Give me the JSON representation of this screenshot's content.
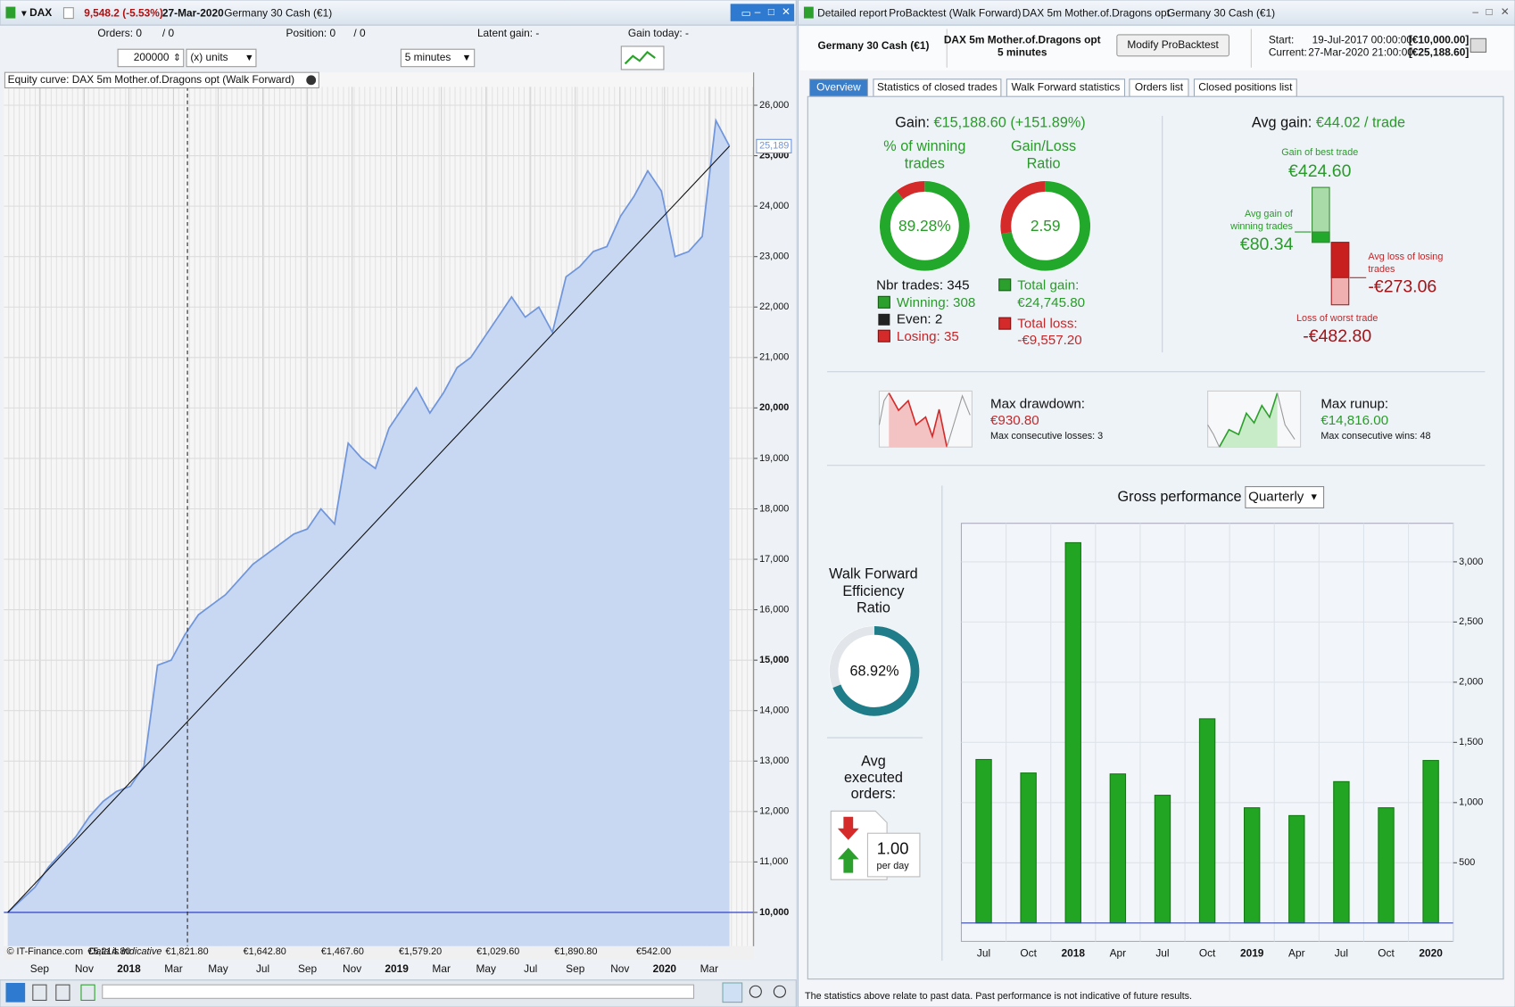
{
  "left_window": {
    "title": {
      "symbol": "DAX",
      "quote": "9,548.2 (-5.53%)",
      "date": "27-Mar-2020",
      "instrument": "Germany 30 Cash (€1)"
    },
    "toolbar": {
      "orders": "Orders: 0",
      "orders_total": "/ 0",
      "position": "Position: 0",
      "position_total": "/ 0",
      "latent_gain": "Latent gain: -",
      "gain_today": "Gain today: -",
      "quantity": "200000",
      "units": "(x) units",
      "timeframe": "5 minutes"
    },
    "chart_footer": {
      "copyright": "© IT-Finance.com",
      "disclaimer": "Data is indicative",
      "period_gains": [
        "€5,214.80",
        "€1,821.80",
        "€1,642.80",
        "€1,467.60",
        "€1,579.20",
        "€1,029.60",
        "€1,890.80",
        "€542.00"
      ]
    }
  },
  "chart_data": [
    {
      "type": "area",
      "title": "Equity curve: DAX 5m Mother.of.Dragons opt (Walk Forward)",
      "x_labels": [
        "Sep",
        "Nov",
        "2018",
        "Mar",
        "May",
        "Jul",
        "Sep",
        "Nov",
        "2019",
        "Mar",
        "May",
        "Jul",
        "Sep",
        "Nov",
        "2020",
        "Mar"
      ],
      "values": [
        10000,
        10250,
        10500,
        10900,
        11200,
        11500,
        11900,
        12200,
        12400,
        12500,
        12900,
        14900,
        15000,
        15500,
        15900,
        16100,
        16300,
        16600,
        16900,
        17100,
        17300,
        17500,
        17600,
        18000,
        17700,
        19300,
        19000,
        18800,
        19600,
        20000,
        20400,
        19900,
        20300,
        20800,
        21000,
        21400,
        21800,
        22200,
        21800,
        22000,
        21500,
        22600,
        22800,
        23100,
        23200,
        23800,
        24200,
        24700,
        24300,
        23000,
        23100,
        23400,
        25700,
        25189
      ],
      "ylim": [
        9330,
        26364
      ],
      "yticks": [
        {
          "value": 10000,
          "label": "10,000"
        },
        {
          "value": 11000,
          "label": "11,000"
        },
        {
          "value": 12000,
          "label": "12,000"
        },
        {
          "value": 13000,
          "label": "13,000"
        },
        {
          "value": 14000,
          "label": "14,000"
        },
        {
          "value": 15000,
          "label": "15,000"
        },
        {
          "value": 16000,
          "label": "16,000"
        },
        {
          "value": 17000,
          "label": "17,000"
        },
        {
          "value": 18000,
          "label": "18,000"
        },
        {
          "value": 19000,
          "label": "19,000"
        },
        {
          "value": 20000,
          "label": "20,000"
        },
        {
          "value": 21000,
          "label": "21,000"
        },
        {
          "value": 22000,
          "label": "22,000"
        },
        {
          "value": 23000,
          "label": "23,000"
        },
        {
          "value": 24000,
          "label": "24,000"
        },
        {
          "value": 25000,
          "label": "25,000"
        },
        {
          "value": 26000,
          "label": "26,000"
        }
      ],
      "current_label": "25,189",
      "color": "#6f95dc",
      "fill_color": "#c8d8f3",
      "trendline": true,
      "grid": true
    },
    {
      "type": "bar",
      "title": "Gross performance",
      "period": "Quarterly",
      "categories": [
        "Jul",
        "Oct",
        "2018",
        "Apr",
        "Jul",
        "Oct",
        "2019",
        "Apr",
        "Jul",
        "Oct",
        "2020"
      ],
      "values": [
        1358,
        1246,
        3159,
        1238,
        1061,
        1696,
        957,
        892,
        1174,
        957,
        1350
      ],
      "ylim": [
        -153,
        3320
      ],
      "yticks": [
        500,
        {
          "value": 1000,
          "label": "1,000"
        },
        {
          "value": 1500,
          "label": "1,500"
        },
        {
          "value": 2000,
          "label": "2,000"
        },
        {
          "value": 2500,
          "label": "2,500"
        },
        {
          "value": 3000,
          "label": "3,000"
        }
      ],
      "color": "#22a522",
      "grid": true
    }
  ],
  "report": {
    "title_bar": {
      "title": "Detailed report",
      "mode": "ProBacktest (Walk Forward)",
      "system": "DAX 5m Mother.of.Dragons opt",
      "instrument": "Germany 30 Cash (€1)"
    },
    "header": {
      "instrument": "Germany 30 Cash (€1)",
      "system": "DAX 5m Mother.of.Dragons opt",
      "timeframe": "5 minutes",
      "button": "Modify ProBacktest",
      "start_label": "Start:",
      "start_date": "19-Jul-2017 00:00:00",
      "start_capital": "[€10,000.00]",
      "current_label": "Current:",
      "current_date": "27-Mar-2020 21:00:00",
      "current_capital": "[€25,188.60]"
    },
    "tabs": [
      "Overview",
      "Statistics of closed trades",
      "Walk Forward statistics",
      "Orders list",
      "Closed positions list"
    ],
    "gain": {
      "label": "Gain:",
      "value": "€15,188.60 (+151.89%)"
    },
    "win_rate": {
      "title": [
        "% of winning",
        "trades"
      ],
      "value": 89.28,
      "label": "89.28%"
    },
    "gain_loss_ratio": {
      "title": [
        "Gain/Loss",
        "Ratio"
      ],
      "value": 2.59
    },
    "trades": {
      "total": "Nbr trades: 345",
      "winning": "Winning: 308",
      "even": "Even: 2",
      "losing": "Losing: 35"
    },
    "totals": {
      "gain_label": "Total gain:",
      "gain": "€24,745.80",
      "loss_label": "Total loss:",
      "loss": "-€9,557.20"
    },
    "avg_gain": {
      "label": "Avg gain:",
      "value": "€44.02 / trade"
    },
    "trade_range": {
      "best": {
        "title": "Gain of best trade",
        "value": 424.6,
        "label": "€424.60"
      },
      "avg_win": {
        "title": [
          "Avg gain of",
          "winning trades"
        ],
        "value": 80.34,
        "label": "€80.34"
      },
      "avg_loss": {
        "title": [
          "Avg loss of losing",
          "trades"
        ],
        "value": -273.06,
        "label": "-€273.06"
      },
      "worst": {
        "title": "Loss of worst trade",
        "value": -482.8,
        "label": "-€482.80"
      }
    },
    "drawdown": {
      "label": "Max drawdown:",
      "value": "€930.80",
      "consecutive": "Max consecutive losses: 3"
    },
    "runup": {
      "label": "Max runup:",
      "value": "€14,816.00",
      "consecutive": "Max consecutive wins: 48"
    },
    "wfe": {
      "title": [
        "Walk Forward",
        "Efficiency",
        "Ratio"
      ],
      "value": 68.92,
      "label": "68.92%"
    },
    "orders": {
      "title": [
        "Avg",
        "executed",
        "orders:"
      ],
      "value": "1.00",
      "unit": "per day"
    },
    "footer": "The statistics above relate to past data. Past performance is not indicative of future results."
  }
}
